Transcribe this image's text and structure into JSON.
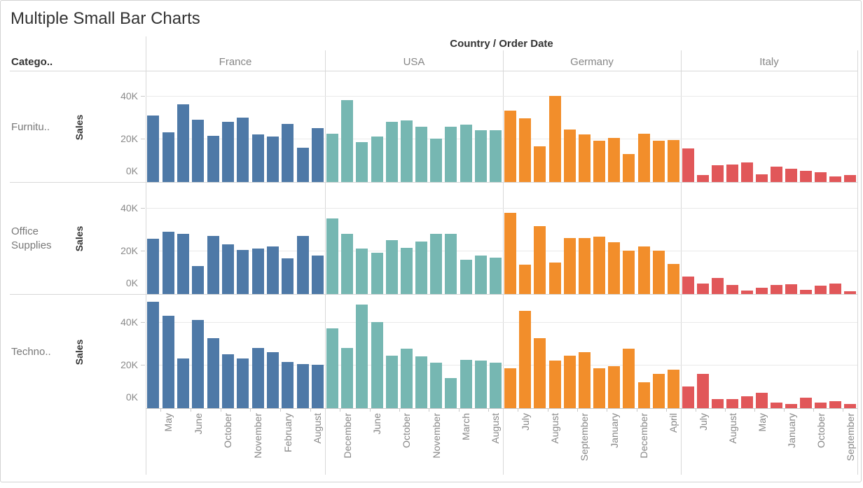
{
  "title": "Multiple Small Bar Charts",
  "row_header_label": "Catego..",
  "column_header_title": "Country / Order Date",
  "y_axis_title": "Sales",
  "colors": {
    "France": "#4e79a7",
    "USA": "#76b7b2",
    "Germany": "#f28e2b",
    "Italy": "#e15759",
    "gridline": "#e9e9e9",
    "separator": "#d8d8d8",
    "axis": "#c9c9c9",
    "gray_text": "#868686",
    "dark_text": "#333333"
  },
  "chart_data": {
    "type": "bar",
    "title": "Multiple Small Bar Charts",
    "facet_columns_title": "Country / Order Date",
    "facet_rows_title": "Catego..",
    "y_axis_title": "Sales",
    "y_unit": "K",
    "ylim_k": [
      0,
      51
    ],
    "yticks_k": [
      0,
      20,
      40
    ],
    "ytick_labels": [
      "0K",
      "20K",
      "40K"
    ],
    "grid": true,
    "bars_per_panel": 12,
    "x_label_note": "month labels shown under every 2nd bar, rotated 90deg",
    "columns": [
      {
        "name": "France",
        "color": "#4e79a7",
        "visible_month_labels": [
          "May",
          "June",
          "October",
          "November",
          "February",
          "August"
        ]
      },
      {
        "name": "USA",
        "color": "#76b7b2",
        "visible_month_labels": [
          "December",
          "June",
          "October",
          "November",
          "March",
          "August"
        ]
      },
      {
        "name": "Germany",
        "color": "#f28e2b",
        "visible_month_labels": [
          "July",
          "August",
          "September",
          "January",
          "December",
          "April"
        ]
      },
      {
        "name": "Italy",
        "color": "#e15759",
        "visible_month_labels": [
          "July",
          "August",
          "May",
          "January",
          "October",
          "September"
        ]
      }
    ],
    "rows": [
      {
        "category": "Furnitu..",
        "y_axis_title": "Sales",
        "values_k": {
          "France": [
            31,
            23,
            36,
            29,
            21.5,
            28,
            30,
            22,
            21,
            27,
            16,
            25
          ],
          "USA": [
            22.5,
            38,
            18.5,
            21,
            28,
            28.5,
            25.5,
            20,
            25.5,
            26.5,
            24,
            24
          ],
          "Germany": [
            33,
            29.5,
            16.5,
            40,
            24.5,
            22,
            19,
            20.5,
            13,
            22.5,
            19,
            19.5
          ],
          "Italy": [
            15.5,
            3.3,
            7.8,
            8.2,
            9,
            3.7,
            7,
            6.2,
            5.3,
            4.4,
            2.6,
            3.3
          ]
        }
      },
      {
        "category": "Office Supplies",
        "y_axis_title": "Sales",
        "values_k": {
          "France": [
            25.5,
            29,
            28,
            13,
            27,
            23,
            20.5,
            21,
            22,
            16.5,
            27,
            18
          ],
          "USA": [
            35,
            28,
            21,
            19,
            25,
            21.5,
            24.5,
            28,
            28,
            16,
            18,
            17
          ],
          "Germany": [
            37.5,
            13.5,
            31.5,
            14.5,
            26,
            26,
            26.5,
            24,
            20,
            22,
            20,
            14
          ],
          "Italy": [
            8,
            5,
            7.5,
            4.3,
            1.7,
            3,
            4.2,
            4.5,
            1.8,
            4,
            4.8,
            1.2
          ]
        }
      },
      {
        "category": "Techno..",
        "y_axis_title": "Sales",
        "values_k": {
          "France": [
            49.5,
            43,
            23,
            41,
            32.5,
            25,
            23,
            28,
            26,
            21.5,
            20.5,
            20
          ],
          "USA": [
            37,
            28,
            48,
            40,
            24.5,
            27.5,
            24,
            21,
            14,
            22.5,
            22,
            21
          ],
          "Germany": [
            18.5,
            45,
            32.5,
            22,
            24.5,
            26,
            18.5,
            19.5,
            27.5,
            12,
            16,
            18
          ],
          "Italy": [
            10,
            16,
            4.2,
            4.1,
            5.5,
            7.2,
            2.5,
            2,
            5,
            2.5,
            3.4,
            1.8
          ]
        }
      }
    ]
  }
}
